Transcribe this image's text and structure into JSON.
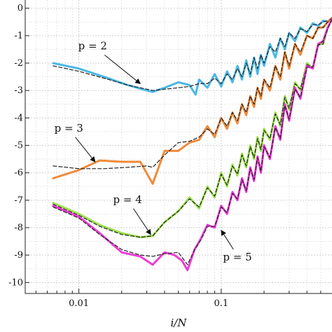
{
  "chart_data": {
    "type": "line",
    "title": "",
    "xlabel": "i/N",
    "ylabel": "",
    "x_scale": "log",
    "xlim": [
      0.0042,
      0.6
    ],
    "ylim": [
      -10.4,
      0.3
    ],
    "grid": true,
    "x_ticks": [
      {
        "value": 0.01,
        "label": "0.01"
      },
      {
        "value": 0.1,
        "label": "0.1"
      }
    ],
    "y_ticks": [
      {
        "value": 0,
        "label": "0"
      },
      {
        "value": -1,
        "label": "-1"
      },
      {
        "value": -2,
        "label": "-2"
      },
      {
        "value": -3,
        "label": "-3"
      },
      {
        "value": -4,
        "label": "-4"
      },
      {
        "value": -5,
        "label": "-5"
      },
      {
        "value": -6,
        "label": "-6"
      },
      {
        "value": -7,
        "label": "-7"
      },
      {
        "value": -8,
        "label": "-8"
      },
      {
        "value": -9,
        "label": "-9"
      },
      {
        "value": -10,
        "label": "-10"
      }
    ],
    "series": [
      {
        "name": "p = 2",
        "color": "#4cb8e4",
        "x": [
          0.0066,
          0.01,
          0.015,
          0.022,
          0.03,
          0.033,
          0.04,
          0.05,
          0.06,
          0.066,
          0.07,
          0.08,
          0.09,
          0.1,
          0.11,
          0.12,
          0.13,
          0.14,
          0.15,
          0.16,
          0.17,
          0.18,
          0.19,
          0.2,
          0.22,
          0.24,
          0.26,
          0.28,
          0.3,
          0.33,
          0.36,
          0.4,
          0.44,
          0.48,
          0.52,
          0.56,
          0.6
        ],
        "y": [
          -2.0,
          -2.2,
          -2.5,
          -2.8,
          -3.0,
          -3.05,
          -2.9,
          -2.7,
          -2.8,
          -3.15,
          -2.6,
          -2.9,
          -2.4,
          -2.85,
          -2.3,
          -2.7,
          -2.1,
          -2.6,
          -1.9,
          -2.5,
          -1.8,
          -2.4,
          -1.7,
          -2.1,
          -1.3,
          -1.8,
          -1.1,
          -1.5,
          -0.9,
          -1.2,
          -0.7,
          -0.9,
          -0.55,
          -0.65,
          -0.45,
          -0.5,
          -0.35
        ]
      },
      {
        "name": "",
        "color": "#222222",
        "style": "dashed",
        "x": [
          0.0066,
          0.01,
          0.015,
          0.022,
          0.03,
          0.033,
          0.04,
          0.05,
          0.06,
          0.07,
          0.08,
          0.09,
          0.1,
          0.11,
          0.12,
          0.13,
          0.14,
          0.15,
          0.16,
          0.17,
          0.18,
          0.19,
          0.2,
          0.22,
          0.24,
          0.26,
          0.28,
          0.3,
          0.33,
          0.36,
          0.4,
          0.44,
          0.48,
          0.52,
          0.56,
          0.6
        ],
        "y": [
          -2.1,
          -2.3,
          -2.55,
          -2.8,
          -2.95,
          -3.0,
          -2.95,
          -2.9,
          -2.85,
          -2.75,
          -2.75,
          -2.55,
          -2.75,
          -2.4,
          -2.6,
          -2.2,
          -2.5,
          -2.0,
          -2.4,
          -1.8,
          -2.2,
          -1.7,
          -2.0,
          -1.4,
          -1.6,
          -1.1,
          -1.4,
          -0.9,
          -1.1,
          -0.75,
          -0.85,
          -0.6,
          -0.6,
          -0.5,
          -0.45,
          -0.35
        ]
      },
      {
        "name": "p = 3",
        "color": "#f08a3a",
        "x": [
          0.0066,
          0.01,
          0.014,
          0.02,
          0.027,
          0.033,
          0.04,
          0.05,
          0.06,
          0.07,
          0.08,
          0.09,
          0.1,
          0.11,
          0.12,
          0.13,
          0.14,
          0.15,
          0.16,
          0.17,
          0.18,
          0.19,
          0.2,
          0.22,
          0.24,
          0.26,
          0.28,
          0.3,
          0.33,
          0.36,
          0.4,
          0.44,
          0.48,
          0.52,
          0.56,
          0.6
        ],
        "y": [
          -6.2,
          -5.9,
          -5.55,
          -5.6,
          -5.6,
          -6.4,
          -5.2,
          -5.2,
          -4.9,
          -4.8,
          -4.3,
          -4.7,
          -4.0,
          -4.4,
          -3.8,
          -4.2,
          -3.5,
          -3.9,
          -3.2,
          -3.6,
          -2.9,
          -3.3,
          -2.6,
          -3.0,
          -2.1,
          -2.6,
          -1.6,
          -2.2,
          -1.3,
          -1.7,
          -1.0,
          -1.1,
          -0.7,
          -0.7,
          -0.5,
          -0.35
        ]
      },
      {
        "name": "",
        "color": "#222222",
        "style": "dashed",
        "x": [
          0.0066,
          0.01,
          0.015,
          0.022,
          0.03,
          0.033,
          0.04,
          0.05,
          0.06,
          0.07,
          0.08,
          0.09,
          0.1,
          0.11,
          0.12,
          0.13,
          0.14,
          0.15,
          0.16,
          0.17,
          0.18,
          0.19,
          0.2,
          0.22,
          0.24,
          0.26,
          0.28,
          0.3,
          0.33,
          0.36,
          0.4,
          0.44,
          0.48,
          0.52,
          0.56,
          0.6
        ],
        "y": [
          -5.75,
          -5.85,
          -5.85,
          -5.8,
          -5.75,
          -5.8,
          -5.35,
          -4.9,
          -4.85,
          -4.7,
          -4.4,
          -4.6,
          -4.0,
          -4.3,
          -3.8,
          -4.1,
          -3.5,
          -3.8,
          -3.2,
          -3.5,
          -2.9,
          -3.2,
          -2.6,
          -2.9,
          -2.1,
          -2.5,
          -1.6,
          -2.1,
          -1.3,
          -1.6,
          -1.0,
          -1.1,
          -0.7,
          -0.7,
          -0.5,
          -0.35
        ]
      },
      {
        "name": "p = 4",
        "color": "#9be04a",
        "x": [
          0.0066,
          0.01,
          0.014,
          0.02,
          0.027,
          0.033,
          0.04,
          0.05,
          0.06,
          0.07,
          0.08,
          0.09,
          0.1,
          0.11,
          0.12,
          0.13,
          0.14,
          0.15,
          0.16,
          0.17,
          0.18,
          0.19,
          0.2,
          0.22,
          0.24,
          0.26,
          0.28,
          0.3,
          0.33,
          0.36,
          0.4,
          0.44,
          0.48,
          0.52,
          0.56,
          0.6
        ],
        "y": [
          -7.1,
          -7.5,
          -7.9,
          -8.2,
          -8.35,
          -8.3,
          -7.8,
          -7.4,
          -6.9,
          -7.3,
          -6.5,
          -6.9,
          -6.0,
          -6.5,
          -5.7,
          -6.1,
          -5.3,
          -5.8,
          -5.0,
          -5.5,
          -4.7,
          -5.2,
          -4.4,
          -4.8,
          -3.8,
          -4.3,
          -3.2,
          -3.7,
          -2.7,
          -3.0,
          -2.0,
          -2.2,
          -1.3,
          -1.3,
          -0.7,
          -0.4
        ]
      },
      {
        "name": "",
        "color": "#222222",
        "style": "dashed",
        "x": [
          0.0066,
          0.01,
          0.014,
          0.02,
          0.027,
          0.033,
          0.04,
          0.05,
          0.06,
          0.07,
          0.08,
          0.09,
          0.1,
          0.11,
          0.12,
          0.13,
          0.14,
          0.15,
          0.16,
          0.17,
          0.18,
          0.19,
          0.2,
          0.22,
          0.24,
          0.26,
          0.28,
          0.3,
          0.33,
          0.36,
          0.4,
          0.44,
          0.48,
          0.52,
          0.56,
          0.6
        ],
        "y": [
          -7.15,
          -7.55,
          -7.95,
          -8.25,
          -8.35,
          -8.3,
          -7.8,
          -7.4,
          -6.95,
          -7.25,
          -6.55,
          -6.85,
          -6.05,
          -6.45,
          -5.75,
          -6.05,
          -5.35,
          -5.75,
          -5.05,
          -5.45,
          -4.75,
          -5.15,
          -4.45,
          -4.75,
          -3.85,
          -4.25,
          -3.25,
          -3.65,
          -2.75,
          -2.95,
          -2.05,
          -2.15,
          -1.35,
          -1.3,
          -0.75,
          -0.4
        ]
      },
      {
        "name": "p = 5",
        "color": "#ec3cd6",
        "x": [
          0.0066,
          0.01,
          0.014,
          0.02,
          0.027,
          0.033,
          0.04,
          0.047,
          0.053,
          0.058,
          0.065,
          0.072,
          0.08,
          0.09,
          0.1,
          0.11,
          0.12,
          0.13,
          0.14,
          0.15,
          0.16,
          0.17,
          0.18,
          0.19,
          0.2,
          0.22,
          0.24,
          0.26,
          0.28,
          0.3,
          0.33,
          0.36,
          0.4,
          0.44,
          0.48,
          0.52,
          0.56,
          0.6
        ],
        "y": [
          -7.2,
          -7.6,
          -8.2,
          -8.9,
          -9.05,
          -9.35,
          -8.9,
          -9.0,
          -9.2,
          -9.55,
          -8.8,
          -8.4,
          -7.9,
          -8.0,
          -7.2,
          -7.5,
          -6.7,
          -7.0,
          -6.2,
          -6.7,
          -5.8,
          -6.3,
          -5.4,
          -6.0,
          -5.0,
          -5.5,
          -4.3,
          -4.8,
          -3.5,
          -4.1,
          -2.9,
          -3.3,
          -2.1,
          -2.2,
          -1.3,
          -1.2,
          -0.7,
          -0.4
        ]
      },
      {
        "name": "",
        "color": "#222222",
        "style": "dashed",
        "x": [
          0.0066,
          0.01,
          0.014,
          0.02,
          0.027,
          0.033,
          0.04,
          0.05,
          0.058,
          0.065,
          0.072,
          0.08,
          0.09,
          0.1,
          0.11,
          0.12,
          0.13,
          0.14,
          0.15,
          0.16,
          0.17,
          0.18,
          0.19,
          0.2,
          0.22,
          0.24,
          0.26,
          0.28,
          0.3,
          0.33,
          0.36,
          0.4,
          0.44,
          0.48,
          0.52,
          0.56,
          0.6
        ],
        "y": [
          -7.25,
          -7.65,
          -8.25,
          -8.8,
          -9.0,
          -9.05,
          -8.95,
          -8.9,
          -9.35,
          -8.8,
          -8.45,
          -7.95,
          -7.95,
          -7.25,
          -7.45,
          -6.75,
          -6.95,
          -6.25,
          -6.65,
          -5.85,
          -6.25,
          -5.45,
          -5.95,
          -5.05,
          -5.45,
          -4.35,
          -4.75,
          -3.55,
          -4.05,
          -2.95,
          -3.25,
          -2.15,
          -2.15,
          -1.35,
          -1.2,
          -0.75,
          -0.4
        ]
      }
    ],
    "annotations": [
      {
        "text": "p = 2",
        "x": 0.0125,
        "y": -1.5,
        "arrow_to_x": 0.027,
        "arrow_to_y": -2.75
      },
      {
        "text": "p = 3",
        "x": 0.0085,
        "y": -4.5,
        "arrow_to_x": 0.013,
        "arrow_to_y": -5.6
      },
      {
        "text": "p = 4",
        "x": 0.022,
        "y": -7.1,
        "arrow_to_x": 0.032,
        "arrow_to_y": -8.25
      },
      {
        "text": "p = 5",
        "x": 0.13,
        "y": -9.2,
        "arrow_to_x": 0.1,
        "arrow_to_y": -8.1
      }
    ]
  }
}
